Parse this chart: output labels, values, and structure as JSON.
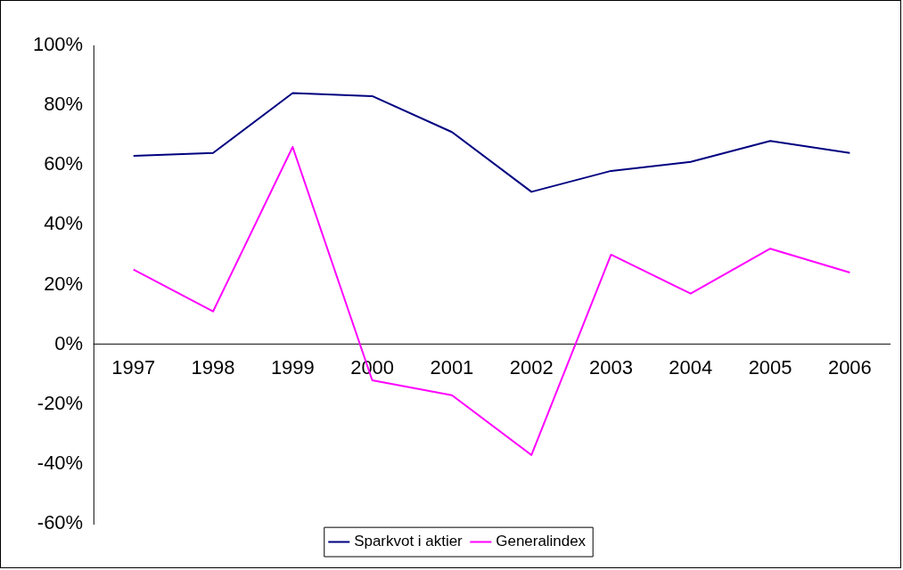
{
  "chart_data": {
    "type": "line",
    "categories": [
      "1997",
      "1998",
      "1999",
      "2000",
      "2001",
      "2002",
      "2003",
      "2004",
      "2005",
      "2006"
    ],
    "series": [
      {
        "name": "Sparkvot i aktier",
        "color": "#000080",
        "values": [
          63,
          64,
          84,
          83,
          71,
          51,
          58,
          61,
          68,
          64
        ]
      },
      {
        "name": "Generalindex",
        "color": "#ff00ff",
        "values": [
          25,
          11,
          66,
          -12,
          -17,
          -37,
          30,
          17,
          32,
          24
        ]
      }
    ],
    "ylim": [
      -60,
      100
    ],
    "yticks": [
      {
        "value": -60,
        "label": "-60%"
      },
      {
        "value": -40,
        "label": "-40%"
      },
      {
        "value": -20,
        "label": "-20%"
      },
      {
        "value": 0,
        "label": "0%"
      },
      {
        "value": 20,
        "label": "20%"
      },
      {
        "value": 40,
        "label": "40%"
      },
      {
        "value": 60,
        "label": "60%"
      },
      {
        "value": 80,
        "label": "80%"
      },
      {
        "value": 100,
        "label": "100%"
      }
    ],
    "grid": false,
    "legend": "bottom",
    "marker": "none",
    "line_style": "solid"
  }
}
